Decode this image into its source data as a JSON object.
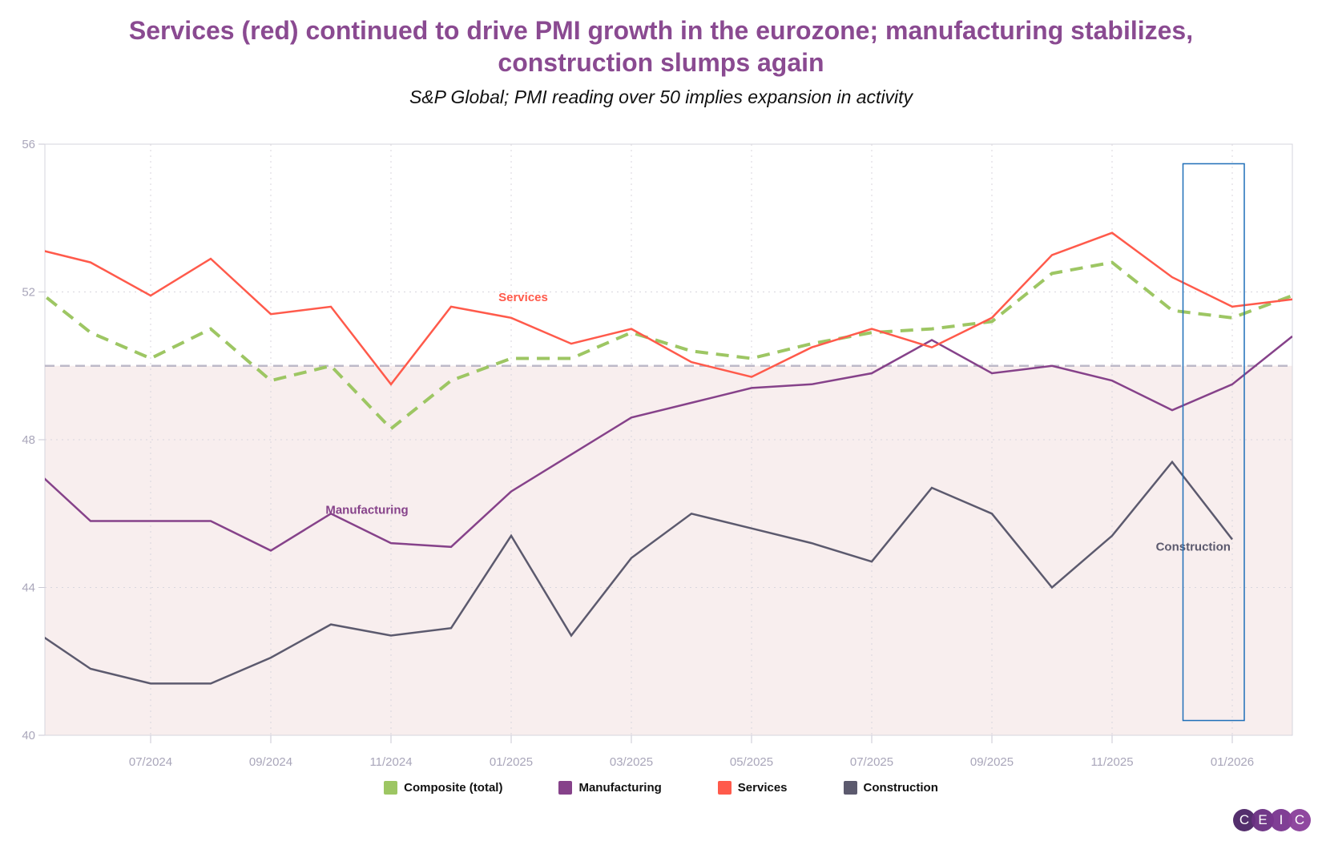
{
  "title": "Services (red) continued to drive PMI growth in the eurozone; manufacturing stabilizes, construction slumps again",
  "subtitle": "S&P Global; PMI reading over 50 implies expansion in activity",
  "chart_data": {
    "type": "line",
    "x": [
      "05/2024",
      "06/2024",
      "07/2024",
      "08/2024",
      "09/2024",
      "10/2024",
      "11/2024",
      "12/2024",
      "01/2025",
      "02/2025",
      "03/2025",
      "04/2025",
      "05/2025",
      "06/2025",
      "07/2025",
      "08/2025",
      "09/2025",
      "10/2025",
      "11/2025",
      "12/2025",
      "01/2026",
      "02/2026"
    ],
    "x_ticks": [
      "07/2024",
      "09/2024",
      "11/2024",
      "01/2025",
      "03/2025",
      "05/2025",
      "07/2025",
      "09/2025",
      "11/2025",
      "01/2026"
    ],
    "y_ticks": [
      40,
      44,
      48,
      52,
      56
    ],
    "ylim": [
      40,
      56
    ],
    "reference_line": 50,
    "grid": true,
    "legend_position": "bottom",
    "series": [
      {
        "name": "Composite (total)",
        "color": "#9dc663",
        "dashed": true,
        "values": [
          52.2,
          50.9,
          50.2,
          51.0,
          49.6,
          50.0,
          48.3,
          49.6,
          50.2,
          50.2,
          50.9,
          50.4,
          50.2,
          50.6,
          50.9,
          51.0,
          51.2,
          52.5,
          52.8,
          51.5,
          51.3,
          51.9
        ]
      },
      {
        "name": "Manufacturing",
        "color": "#86428a",
        "label": "Manufacturing",
        "values": [
          47.3,
          45.8,
          45.8,
          45.8,
          45.0,
          46.0,
          45.2,
          45.1,
          46.6,
          47.6,
          48.6,
          49.0,
          49.4,
          49.5,
          49.8,
          50.7,
          49.8,
          50.0,
          49.6,
          48.8,
          49.5,
          50.8
        ]
      },
      {
        "name": "Services",
        "color": "#ff5a4b",
        "label": "Services",
        "values": [
          53.2,
          52.8,
          51.9,
          52.9,
          51.4,
          51.6,
          49.5,
          51.6,
          51.3,
          50.6,
          51.0,
          50.1,
          49.7,
          50.5,
          51.0,
          50.5,
          51.3,
          53.0,
          53.6,
          52.4,
          51.6,
          51.8
        ]
      },
      {
        "name": "Construction",
        "color": "#5c5a6e",
        "label": "Construction",
        "values": [
          42.9,
          41.8,
          41.4,
          41.4,
          42.1,
          43.0,
          42.7,
          42.9,
          45.4,
          42.7,
          44.8,
          46.0,
          45.6,
          45.2,
          44.7,
          46.7,
          46.0,
          44.0,
          45.4,
          47.4,
          45.3,
          null
        ]
      }
    ]
  },
  "logo": [
    "C",
    "E",
    "I",
    "C"
  ]
}
